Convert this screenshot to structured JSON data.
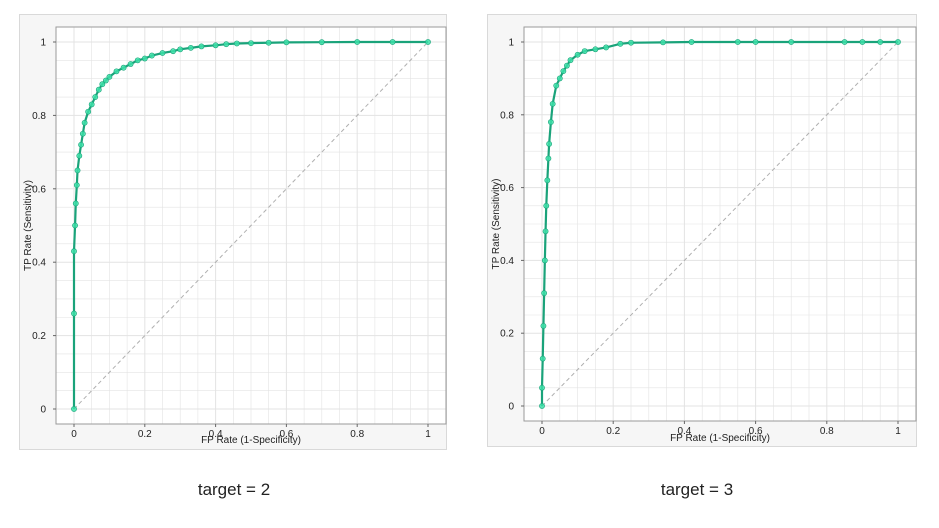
{
  "captions": [
    "target = 2",
    "target = 3"
  ],
  "colors": {
    "roc_line": "#1aa37a",
    "roc_points": "#3de0a8",
    "diagonal": "#b0b0b0",
    "grid": "#e3e3e3",
    "plot_background": "#ffffff",
    "frame_background": "#f6f6f6"
  },
  "chart_data": [
    {
      "type": "line",
      "title": "",
      "caption": "target = 2",
      "xlabel": "FP Rate (1-Specificity)",
      "ylabel": "TP Rate (Sensitivity)",
      "xlim": [
        0,
        1
      ],
      "ylim": [
        0,
        1
      ],
      "x_ticks": [
        "0",
        "0.2",
        "0.4",
        "0.6",
        "0.8",
        "1"
      ],
      "y_ticks": [
        "0",
        "0.2",
        "0.4",
        "0.6",
        "0.8",
        "1"
      ],
      "grid": true,
      "legend": "none",
      "reference_line": {
        "x": [
          0,
          1
        ],
        "y": [
          0,
          1
        ],
        "style": "dashed"
      },
      "series": [
        {
          "x": [
            0,
            0,
            0,
            0.003,
            0.005,
            0.008,
            0.01,
            0.015,
            0.02,
            0.025,
            0.03,
            0.04,
            0.05,
            0.06,
            0.07,
            0.08,
            0.09,
            0.1,
            0.12,
            0.14,
            0.16,
            0.18,
            0.2,
            0.22,
            0.25,
            0.28,
            0.3,
            0.33,
            0.36,
            0.4,
            0.43,
            0.46,
            0.5,
            0.55,
            0.6,
            0.7,
            0.8,
            0.9,
            1
          ],
          "y": [
            0,
            0.26,
            0.43,
            0.5,
            0.56,
            0.61,
            0.65,
            0.69,
            0.72,
            0.75,
            0.78,
            0.81,
            0.83,
            0.85,
            0.87,
            0.885,
            0.895,
            0.905,
            0.92,
            0.93,
            0.94,
            0.95,
            0.955,
            0.963,
            0.97,
            0.975,
            0.98,
            0.984,
            0.988,
            0.991,
            0.994,
            0.996,
            0.997,
            0.998,
            0.999,
            0.9995,
            1,
            1,
            1
          ]
        }
      ]
    },
    {
      "type": "line",
      "title": "",
      "caption": "target = 3",
      "xlabel": "FP Rate (1-Specificity)",
      "ylabel": "TP Rate (Sensitivity)",
      "xlim": [
        0,
        1
      ],
      "ylim": [
        0,
        1
      ],
      "x_ticks": [
        "0",
        "0.2",
        "0.4",
        "0.6",
        "0.8",
        "1"
      ],
      "y_ticks": [
        "0",
        "0.2",
        "0.4",
        "0.6",
        "0.8",
        "1"
      ],
      "grid": true,
      "legend": "none",
      "reference_line": {
        "x": [
          0,
          1
        ],
        "y": [
          0,
          1
        ],
        "style": "dashed"
      },
      "series": [
        {
          "x": [
            0,
            0,
            0.002,
            0.004,
            0.006,
            0.008,
            0.01,
            0.012,
            0.015,
            0.018,
            0.02,
            0.025,
            0.03,
            0.04,
            0.05,
            0.06,
            0.07,
            0.08,
            0.1,
            0.12,
            0.15,
            0.18,
            0.22,
            0.25,
            0.34,
            0.42,
            0.55,
            0.6,
            0.7,
            0.85,
            0.9,
            0.95,
            1
          ],
          "y": [
            0,
            0.05,
            0.13,
            0.22,
            0.31,
            0.4,
            0.48,
            0.55,
            0.62,
            0.68,
            0.72,
            0.78,
            0.83,
            0.88,
            0.9,
            0.92,
            0.935,
            0.95,
            0.965,
            0.975,
            0.98,
            0.985,
            0.995,
            0.998,
            0.999,
            1,
            1,
            1,
            1,
            1,
            1,
            1,
            1
          ]
        }
      ]
    }
  ]
}
